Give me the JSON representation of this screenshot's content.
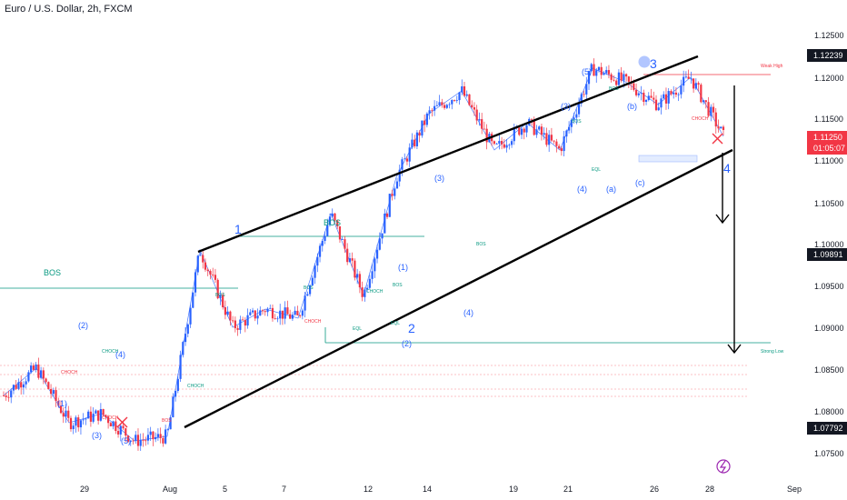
{
  "chart_data": {
    "type": "candlestick",
    "title": "Euro / U.S. Dollar, 2h, FXCM",
    "ylim": [
      1.0725,
      1.1275
    ],
    "y_ticks": [
      "1.12500",
      "1.12000",
      "1.11500",
      "1.11000",
      "1.10500",
      "1.10000",
      "1.09500",
      "1.09000",
      "1.08500",
      "1.08000",
      "1.07500"
    ],
    "x_ticks": [
      "29",
      "Aug",
      "5",
      "7",
      "12",
      "14",
      "19",
      "21",
      "26",
      "28",
      "Sep"
    ],
    "price_labels": {
      "high": "1.12239",
      "current": "1.11250",
      "countdown": "01:05:07",
      "mid": "1.09891",
      "low": "1.07792"
    },
    "colors": {
      "up": "#2962ff",
      "down": "#f23645",
      "channel": "#000000",
      "bos_line": "#089981",
      "weak_high": "#f23645"
    },
    "annotations": {
      "bos": "BOS",
      "choch": "CHOCH",
      "eql": "EQL",
      "weak_high": "Weak High",
      "strong_low": "Strong Low",
      "wave_1": "1",
      "wave_2": "2",
      "wave_3": "3",
      "wave_4": "4",
      "sub_1": "(1)",
      "sub_2": "(2)",
      "sub_3": "(3)",
      "sub_4": "(4)",
      "sub_5": "(5)",
      "sub_a": "(a)",
      "sub_b": "(b)",
      "sub_c": "(c)"
    },
    "swing_points": [
      1.084,
      1.087,
      1.081,
      1.082,
      1.079,
      1.0795,
      1.1,
      1.0915,
      1.0935,
      1.0925,
      1.104,
      1.095,
      1.108,
      1.115,
      1.1175,
      1.111,
      1.114,
      1.111,
      1.12,
      1.1185,
      1.116,
      1.119,
      1.1125
    ]
  }
}
